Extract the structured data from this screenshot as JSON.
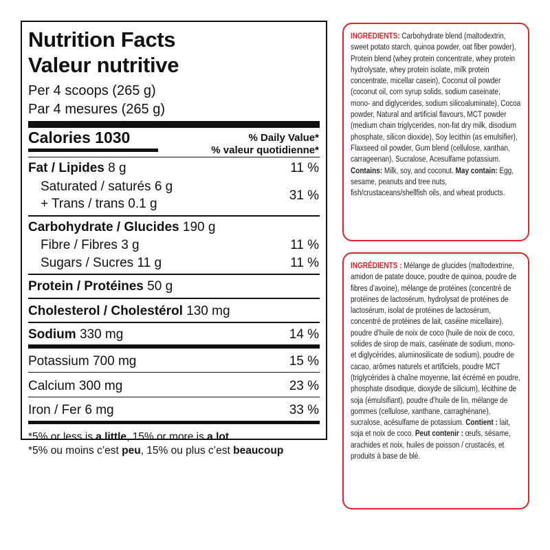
{
  "nutrition": {
    "title": "Nutrition Facts",
    "title_fr": "Valeur nutritive",
    "serving": "Per 4 scoops (265 g)",
    "serving_fr": "Par 4 mesures (265 g)",
    "calories": "Calories 1030",
    "dv_header": "% Daily Value*",
    "dv_header_fr": "% valeur quotidienne*",
    "rows": [
      {
        "label": "Fat / Lipides",
        "amount": "8 g",
        "dv": "11 %"
      },
      {
        "label": "Saturated / saturés 6 g",
        "label2": "+ Trans / trans 0.1 g",
        "dv": "31 %"
      },
      {
        "label": "Carbohydrate / Glucides",
        "amount": "190 g"
      },
      {
        "label": "Fibre / Fibres 3 g",
        "dv": "11 %"
      },
      {
        "label": "Sugars / Sucres 11 g",
        "dv": "11 %"
      },
      {
        "label": "Protein / Protéines",
        "amount": "50 g"
      },
      {
        "label": "Cholesterol / Cholestérol",
        "amount": "130 mg"
      },
      {
        "label": "Sodium",
        "amount": "330 mg",
        "dv": "14 %"
      },
      {
        "label": "Potassium 700 mg",
        "dv": "15 %"
      },
      {
        "label": "Calcium 300 mg",
        "dv": "23 %"
      },
      {
        "label": "Iron / Fer 6 mg",
        "dv": "33 %"
      }
    ],
    "footnote": [
      {
        "text": "*5% or less is ",
        "style": "normal"
      },
      {
        "text": "a little",
        "style": "bold"
      },
      {
        "text": ", 15% or more is ",
        "style": "normal"
      },
      {
        "text": "a lot",
        "style": "bold"
      }
    ],
    "footnote_fr": [
      {
        "text": "*5% ou moins c’est ",
        "style": "normal"
      },
      {
        "text": "peu",
        "style": "bold"
      },
      {
        "text": ", 15% ou plus c’est ",
        "style": "normal"
      },
      {
        "text": "beaucoup",
        "style": "bold"
      }
    ]
  },
  "ingredients_en": [
    {
      "text": "INGREDIENTS:",
      "style": "heading"
    },
    {
      "text": " Carbohydrate blend (maltodextrin, sweet potato starch, quinoa powder, oat fiber powder), Protein blend (whey protein concentrate, whey protein hydrolysate, whey protein isolate, milk protein concentrate, micellar casein), Coconut oil powder (coconut oil, corn syrup solids, sodium caseinate, mono- and diglycerides, sodium silicoaluminate), Cocoa powder, Natural and artificial flavours, MCT powder (medium chain triglycerides, non-fat dry milk, disodium phosphate, silicon dioxide), Soy lecithin (as emulsifier), Flaxseed oil powder, Gum blend (cellulose, xanthan, carrageenan), Sucralose, Acesulfame potassium. ",
      "style": "normal"
    },
    {
      "text": "Contains:",
      "style": "bold"
    },
    {
      "text": " Milk, soy, and coconut. ",
      "style": "normal"
    },
    {
      "text": "May contain:",
      "style": "bold"
    },
    {
      "text": " Egg, sesame, peanuts and tree nuts, fish/crustaceans/shellfish oils, and wheat products.",
      "style": "normal"
    }
  ],
  "ingredients_fr": [
    {
      "text": "INGRÉDIENTS :",
      "style": "heading"
    },
    {
      "text": " Mélange de glucides (maltodextrine, amidon de patate douce, poudre de quinoa, poudre de fibres d’avoine), mélange de protéines (concentré de protéines de lactosérum, hydrolysat de protéines de lactosérum, isolat de protéines de lactosérum, concentré de protéines de lait, caséine micellaire), poudre d’huile de noix de coco (huile de noix de coco, solides de sirop de maïs, caséinate de sodium, mono- et diglycérides, aluminosilicate de sodium), poudre de cacao, arômes naturels et artificiels, poudre MCT (triglycérides à chaîne moyenne, lait écrémé en poudre, phosphate disodique, dioxyde de silicium), lécithine de soja (émulsifiant), poudre d’huile de lin, mélange de gommes (cellulose, xanthane, carraghénane), sucralose, acésulfame de potassium. ",
      "style": "normal"
    },
    {
      "text": "Contient :",
      "style": "bold"
    },
    {
      "text": " lait, soja et noix de coco. ",
      "style": "normal"
    },
    {
      "text": "Peut contenir :",
      "style": "bold"
    },
    {
      "text": " œufs, sésame, arachides et noix, huiles de poisson / crustacés, et produits à base de blé.",
      "style": "normal"
    }
  ]
}
